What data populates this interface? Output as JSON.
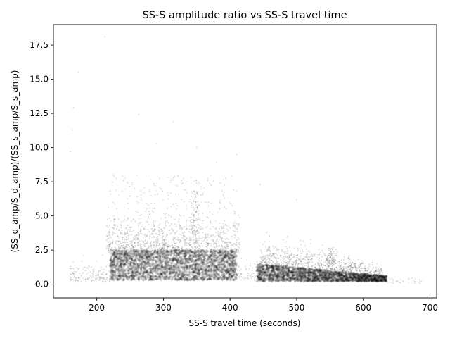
{
  "chart_data": {
    "type": "scatter",
    "title": "SS-S amplitude ratio vs SS-S travel time",
    "xlabel": "SS-S travel time (seconds)",
    "ylabel": "(SS_d_amp/S_d_amp)/(SS_s_amp/S_s_amp)",
    "xlim": [
      135,
      710
    ],
    "ylim": [
      -1.0,
      19.0
    ],
    "xticks": [
      200,
      300,
      400,
      500,
      600,
      700
    ],
    "yticks": [
      0.0,
      2.5,
      5.0,
      7.5,
      10.0,
      12.5,
      15.0,
      17.5
    ],
    "grid": false,
    "legend": "none",
    "marker_color": "#000000",
    "marker_opacity": 0.15,
    "clusters": [
      {
        "x_range": [
          220,
          410
        ],
        "y_core": [
          0.3,
          2.5
        ],
        "description_values": [
          0.3,
          1.0,
          2.5
        ]
      },
      {
        "x_range": [
          440,
          635
        ],
        "y_core": [
          0.2,
          1.5
        ],
        "description_values": [
          0.2,
          0.8,
          1.5
        ]
      }
    ],
    "outliers": [
      {
        "x": 163,
        "y": 11.3
      },
      {
        "x": 160,
        "y": 9.7
      },
      {
        "x": 165,
        "y": 12.9
      },
      {
        "x": 172,
        "y": 15.5
      },
      {
        "x": 212,
        "y": 18.1
      },
      {
        "x": 263,
        "y": 12.4
      },
      {
        "x": 315,
        "y": 11.9
      },
      {
        "x": 350,
        "y": 10.0
      },
      {
        "x": 410,
        "y": 9.5
      },
      {
        "x": 380,
        "y": 8.9
      },
      {
        "x": 290,
        "y": 10.3
      },
      {
        "x": 225,
        "y": 8.0
      },
      {
        "x": 500,
        "y": 6.2
      },
      {
        "x": 445,
        "y": 7.3
      },
      {
        "x": 650,
        "y": 0.2
      },
      {
        "x": 685,
        "y": 0.05
      },
      {
        "x": 180,
        "y": 2.1
      },
      {
        "x": 170,
        "y": 1.2
      }
    ]
  }
}
